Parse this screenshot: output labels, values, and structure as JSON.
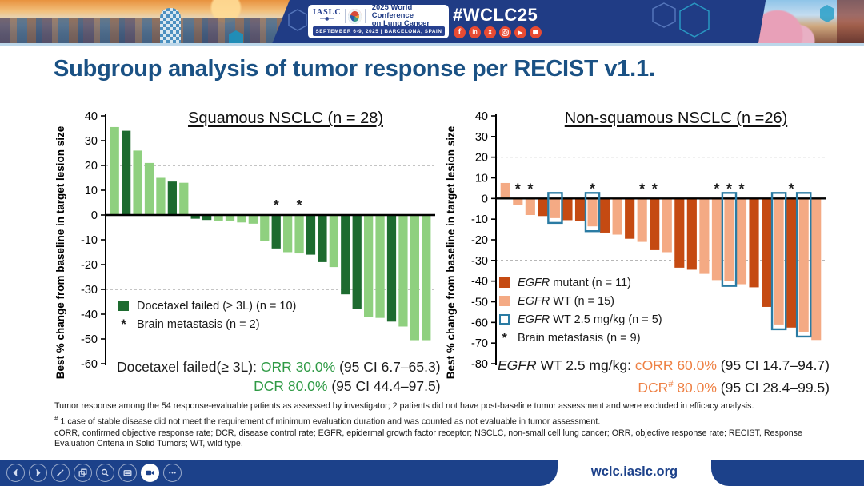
{
  "header": {
    "logo_box": {
      "iaslc_label": "IASLC",
      "conference_line1": "2025 World Conference",
      "conference_line2": "on Lung Cancer",
      "date_location": "SEPTEMBER 6-9, 2025  |  BARCELONA, SPAIN"
    },
    "hashtag": "#WCLC25",
    "social_icons": [
      "facebook-icon",
      "linkedin-icon",
      "x-icon",
      "instagram-icon",
      "youtube-icon",
      "chat-icon"
    ],
    "colors": {
      "bar": "#203c85",
      "social": "#e84b33"
    }
  },
  "slide": {
    "title": "Subgroup analysis of tumor response per RECIST v1.1.",
    "title_color": "#1a5184"
  },
  "chart_data": [
    {
      "type": "bar",
      "title": "Squamous NSCLC (n = 28)",
      "ylabel": "Best % change from baseline in target lesion size",
      "xlabel": "",
      "ylim": [
        -60,
        40
      ],
      "ytick_step": 10,
      "dashed_reference_lines": [
        20,
        -30
      ],
      "legend_position": "lower-left-inside",
      "values": [
        35.5,
        34,
        26,
        21,
        15,
        13.5,
        13,
        -1.5,
        -2,
        -2.5,
        -2.5,
        -3,
        -3.5,
        -10.5,
        -13.5,
        -15,
        -15.5,
        -16,
        -19,
        -21,
        -32,
        -38,
        -41,
        -41.5,
        -43,
        -45,
        -50.5,
        -50.5
      ],
      "group_of_bar": [
        "light",
        "dark",
        "light",
        "light",
        "light",
        "dark",
        "light",
        "dark",
        "dark",
        "light",
        "light",
        "light",
        "light",
        "light",
        "dark",
        "light",
        "light",
        "dark",
        "dark",
        "light",
        "dark",
        "dark",
        "light",
        "light",
        "dark",
        "light",
        "light",
        "light"
      ],
      "asterisk_bars": [
        14,
        16
      ],
      "outline_bars": [],
      "colors": {
        "dark": "#1d6b2f",
        "light": "#8fd07f",
        "outline": "#2a7ba3",
        "accent": "#2f9a45"
      },
      "legend": [
        {
          "type": "fill",
          "color": "#1d6b2f",
          "segs": [
            {
              "t": "Docetaxel failed (≥ 3L) (n = 10)"
            }
          ]
        },
        {
          "type": "asterisk",
          "segs": [
            {
              "t": "Brain metastasis (n = 2)"
            }
          ]
        }
      ],
      "summary": {
        "line1": [
          {
            "t": "Docetaxel failed(≥ 3L): "
          },
          {
            "t": "ORR 30.0%",
            "accent": true
          },
          {
            "t": " (95 CI 6.7–65.3)"
          }
        ],
        "line2": [
          {
            "t": "DCR 80.0%",
            "accent": true
          },
          {
            "t": " (95 CI 44.4–97.5)"
          }
        ]
      }
    },
    {
      "type": "bar",
      "title": "Non-squamous NSCLC (n =26)",
      "ylabel": "Best % change from baseline in target lesion size",
      "xlabel": "",
      "ylim": [
        -80,
        40
      ],
      "ytick_step": 10,
      "dashed_reference_lines": [
        20,
        -30
      ],
      "legend_position": "lower-left-inside",
      "values": [
        7.5,
        -3,
        -8,
        -8.5,
        -9.5,
        -10.5,
        -11,
        -13.5,
        -16.5,
        -17.5,
        -19.5,
        -21,
        -25,
        -26,
        -33.5,
        -34.5,
        -36.5,
        -39.5,
        -40,
        -41.5,
        -43,
        -52.5,
        -61,
        -62.5,
        -64.5,
        -68.5
      ],
      "group_of_bar": [
        "light",
        "light",
        "light",
        "dark",
        "light",
        "dark",
        "dark",
        "light",
        "dark",
        "light",
        "dark",
        "light",
        "dark",
        "light",
        "dark",
        "dark",
        "light",
        "light",
        "light",
        "light",
        "dark",
        "dark",
        "light",
        "dark",
        "light",
        "light"
      ],
      "asterisk_bars": [
        1,
        2,
        7,
        11,
        12,
        17,
        18,
        19,
        23
      ],
      "outline_bars": [
        4,
        7,
        18,
        22,
        24
      ],
      "colors": {
        "dark": "#c54a12",
        "light": "#f4aa84",
        "outline": "#2a7ba3",
        "accent": "#ee8044"
      },
      "legend": [
        {
          "type": "fill",
          "color": "#c54a12",
          "segs": [
            {
              "t": "EGFR",
              "i": true
            },
            {
              "t": " mutant (n = 11)"
            }
          ]
        },
        {
          "type": "fill",
          "color": "#f4aa84",
          "segs": [
            {
              "t": "EGFR",
              "i": true
            },
            {
              "t": " WT (n = 15)"
            }
          ]
        },
        {
          "type": "outline",
          "color": "#2a7ba3",
          "segs": [
            {
              "t": "EGFR",
              "i": true
            },
            {
              "t": " WT 2.5 mg/kg (n = 5)"
            }
          ]
        },
        {
          "type": "asterisk",
          "segs": [
            {
              "t": "Brain metastasis (n = 9)"
            }
          ]
        }
      ],
      "summary": {
        "line1": [
          {
            "t": "EGFR",
            "i": true
          },
          {
            "t": " WT 2.5 mg/kg:  "
          },
          {
            "t": "cORR 60.0%",
            "accent": true
          },
          {
            "t": " (95 CI 14.7–94.7)"
          }
        ],
        "line2": [
          {
            "t": "DCR",
            "accent": true
          },
          {
            "t": "#",
            "accent": true,
            "sup": true
          },
          {
            "t": " 80.0%",
            "accent": true
          },
          {
            "t": " (95 CI 28.4–99.5)"
          }
        ]
      }
    }
  ],
  "footnotes": {
    "line1": "Tumor response among the 54 response-evaluable patients as assessed by investigator; 2 patients did not have post-baseline tumor assessment and were excluded in efficacy analysis.",
    "line2_sup": "#",
    "line2": " 1 case of stable disease did not meet the requirement of minimum evaluation duration and was counted as not evaluable in tumor assessment.",
    "line3": "cORR, confirmed objective response rate; DCR, disease control rate; EGFR, epidermal growth factor receptor; NSCLC, non-small cell lung cancer; ORR, objective response rate; RECIST, Response Evaluation Criteria in Solid Tumors; WT, wild type."
  },
  "footer": {
    "url": "wclc.iaslc.org",
    "toolbar_icons": [
      "prev-icon",
      "next-icon",
      "pen-icon",
      "slides-icon",
      "zoom-icon",
      "notes-icon",
      "camera-icon",
      "more-icon"
    ],
    "bar_color": "#1c418a"
  }
}
